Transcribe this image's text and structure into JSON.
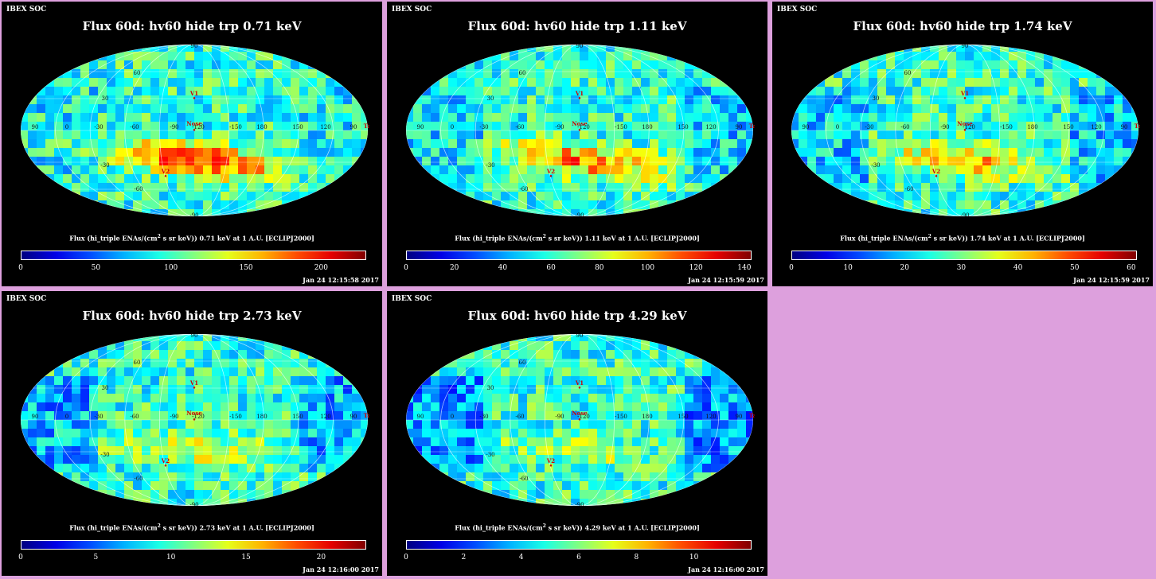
{
  "colors": {
    "background": "#dda0dd",
    "panel": "#000000"
  },
  "panels": [
    {
      "soc": "IBEX SOC",
      "title": "Flux 60d: hv60 hide trp 0.71 keV",
      "unit_a": "Flux (hi_triple ENAs/(cm",
      "unit_sup": "2",
      "unit_b": " s sr keV)) 0.71 keV at 1 A.U. [ECLIPJ2000]",
      "ticks": [
        "0",
        "50",
        "100",
        "150",
        "200"
      ],
      "tick_values": [
        0,
        50,
        100,
        150,
        200
      ],
      "scale_max": 230,
      "date": "Jan 24 12:15:58 2017",
      "hot_spots": 2.0
    },
    {
      "soc": "IBEX SOC",
      "title": "Flux 60d: hv60 hide trp 1.11 keV",
      "unit_a": "Flux (hi_triple ENAs/(cm",
      "unit_sup": "2",
      "unit_b": " s sr keV)) 1.11 keV at 1 A.U. [ECLIPJ2000]",
      "ticks": [
        "0",
        "20",
        "40",
        "60",
        "80",
        "100",
        "120",
        "140"
      ],
      "tick_values": [
        0,
        20,
        40,
        60,
        80,
        100,
        120,
        140
      ],
      "scale_max": 143,
      "date": "Jan 24 12:15:59 2017",
      "hot_spots": 1.5
    },
    {
      "soc": "IBEX SOC",
      "title": "Flux 60d: hv60 hide trp 1.74 keV",
      "unit_a": "Flux (hi_triple ENAs/(cm",
      "unit_sup": "2",
      "unit_b": " s sr keV)) 1.74 keV at 1 A.U. [ECLIPJ2000]",
      "ticks": [
        "0",
        "10",
        "20",
        "30",
        "40",
        "50",
        "60"
      ],
      "tick_values": [
        0,
        10,
        20,
        30,
        40,
        50,
        60
      ],
      "scale_max": 61,
      "date": "Jan 24 12:15:59 2017",
      "hot_spots": 1.2
    },
    {
      "soc": "IBEX SOC",
      "title": "Flux 60d: hv60 hide trp 2.73 keV",
      "unit_a": "Flux (hi_triple ENAs/(cm",
      "unit_sup": "2",
      "unit_b": " s sr keV)) 2.73 keV at 1 A.U. [ECLIPJ2000]",
      "ticks": [
        "0",
        "5",
        "10",
        "15",
        "20"
      ],
      "tick_values": [
        0,
        5,
        10,
        15,
        20
      ],
      "scale_max": 23,
      "date": "Jan 24 12:16:00 2017",
      "hot_spots": 0.9
    },
    {
      "soc": "IBEX SOC",
      "title": "Flux 60d: hv60 hide trp 4.29 keV",
      "unit_a": "Flux (hi_triple ENAs/(cm",
      "unit_sup": "2",
      "unit_b": " s sr keV)) 4.29 keV at 1 A.U. [ECLIPJ2000]",
      "ticks": [
        "0",
        "2",
        "4",
        "6",
        "8",
        "10"
      ],
      "tick_values": [
        0,
        2,
        4,
        6,
        8,
        10
      ],
      "scale_max": 12,
      "date": "Jan 24 12:16:00 2017",
      "hot_spots": 0.5
    }
  ],
  "map_labels": {
    "north": "90",
    "south": "-90",
    "lon": [
      "90",
      "0",
      "-30",
      "-60",
      "-90",
      "-120",
      "-150",
      "180",
      "150",
      "120",
      "90"
    ],
    "lat_left": [
      "60",
      "30",
      "-30",
      "-60"
    ],
    "lat_center": [
      "60",
      "30",
      "-30",
      "-60"
    ],
    "markers": {
      "v1": "V1",
      "v2": "V2",
      "nose": "Nose",
      "tail": "Tail"
    }
  }
}
